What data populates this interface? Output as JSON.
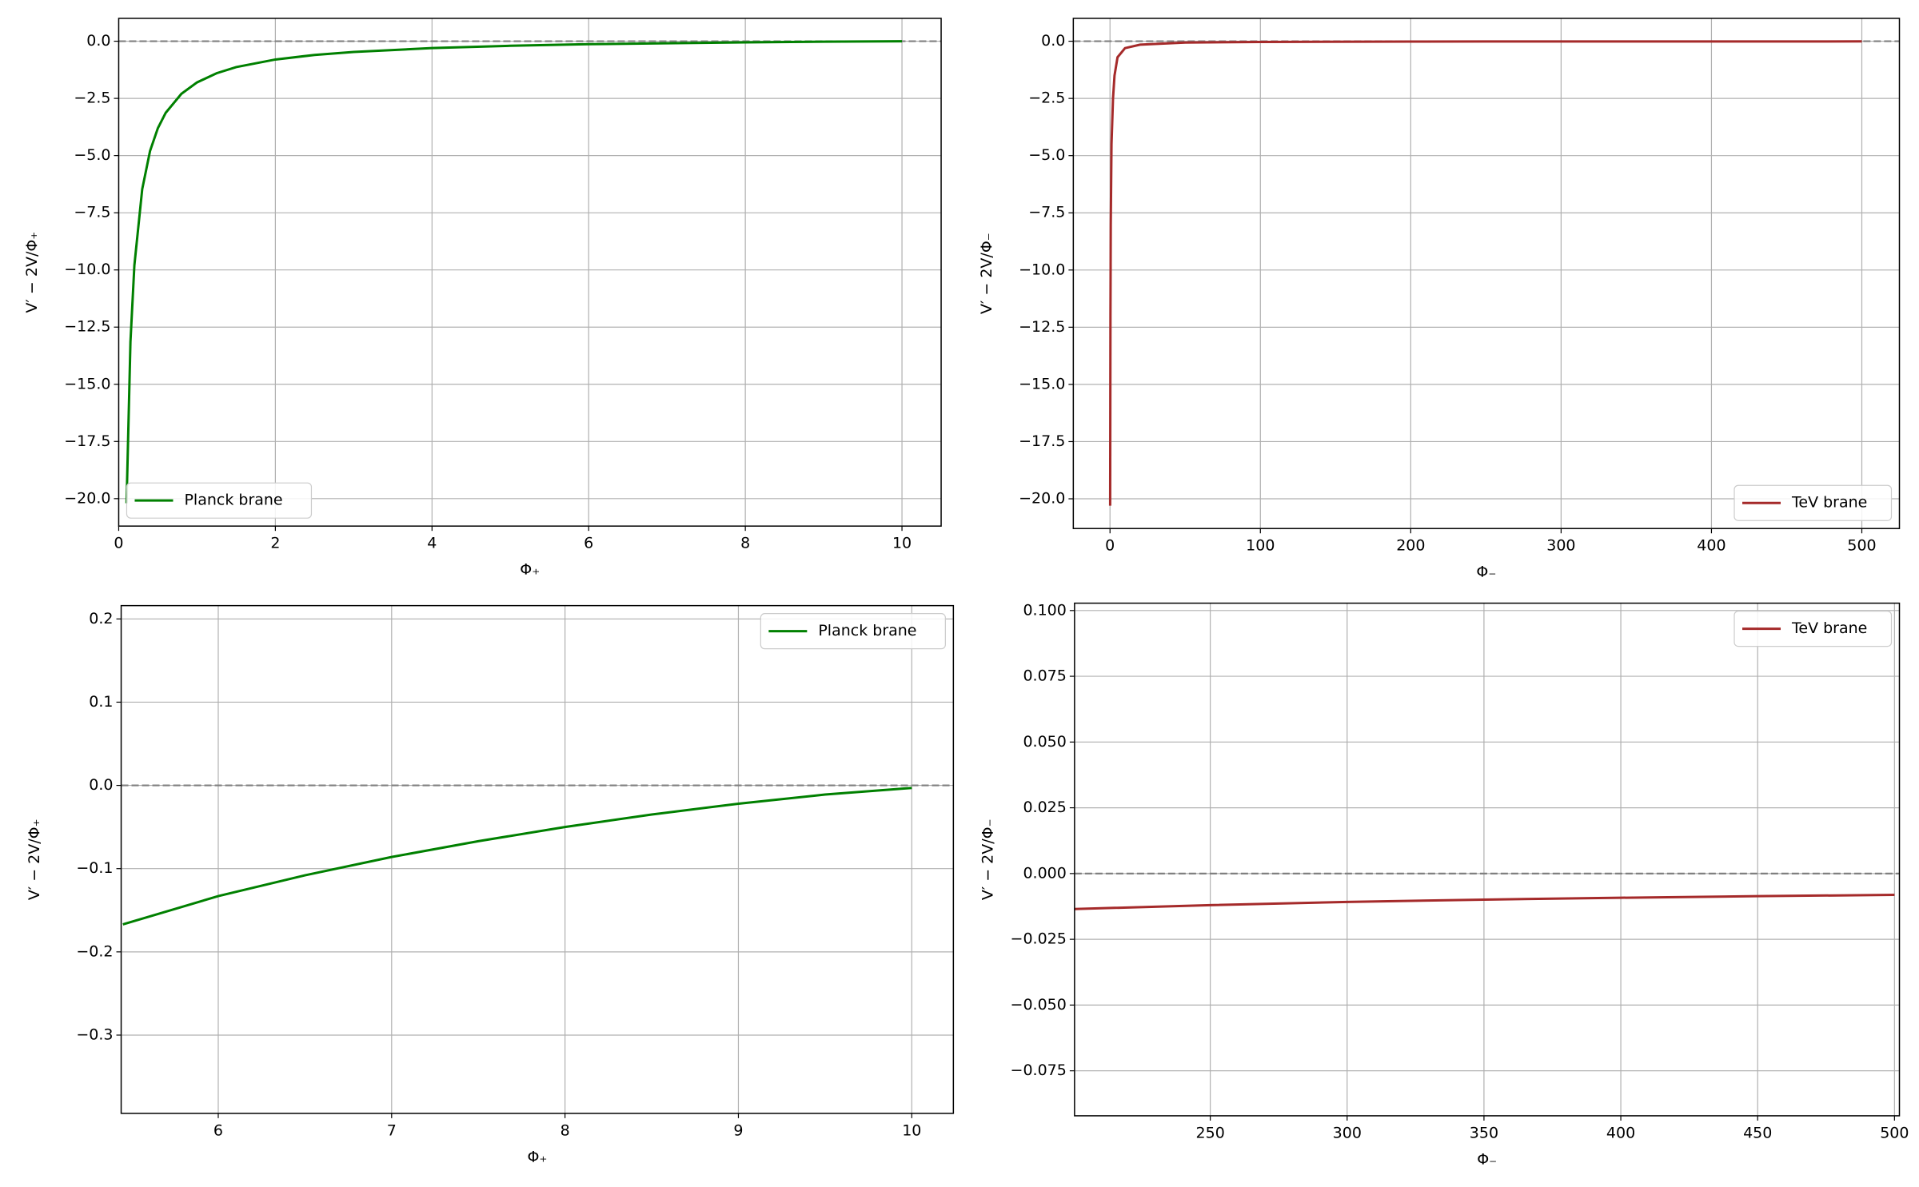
{
  "chart_data": [
    {
      "type": "line",
      "xlabel": "Φ₊",
      "ylabel": "V′ − 2V/Φ₊",
      "x": [
        0.1,
        0.15,
        0.2,
        0.3,
        0.4,
        0.5,
        0.6,
        0.8,
        1,
        1.25,
        1.5,
        2,
        2.5,
        3,
        4,
        5,
        6,
        7,
        8,
        9,
        10
      ],
      "series": [
        {
          "name": "Planck brane",
          "color": "#008000",
          "values": [
            -20.2,
            -13.13,
            -9.8,
            -6.47,
            -4.8,
            -3.8,
            -3.13,
            -2.3,
            -1.8,
            -1.4,
            -1.13,
            -0.8,
            -0.6,
            -0.47,
            -0.3,
            -0.2,
            -0.13,
            -0.09,
            -0.05,
            -0.02,
            0
          ]
        }
      ],
      "xlim": [
        0,
        10.5
      ],
      "ylim": [
        -21.2,
        1.0
      ],
      "xticks": [
        0,
        2,
        4,
        6,
        8,
        10
      ],
      "yticks": [
        {
          "value": 0,
          "label": "0.0"
        },
        {
          "value": -2.5,
          "label": "−2.5"
        },
        {
          "value": -5,
          "label": "−5.0"
        },
        {
          "value": -7.5,
          "label": "−7.5"
        },
        {
          "value": -10,
          "label": "−10.0"
        },
        {
          "value": -12.5,
          "label": "−12.5"
        },
        {
          "value": -15,
          "label": "−15.0"
        },
        {
          "value": -17.5,
          "label": "−17.5"
        },
        {
          "value": -20,
          "label": "−20.0"
        }
      ],
      "grid": true,
      "legend": "lower left",
      "hline": 0
    },
    {
      "type": "line",
      "xlabel": "Φ₋",
      "ylabel": "V′ − 2V/Φ₋",
      "x": [
        0.1,
        0.3,
        0.5,
        1,
        2,
        3,
        5,
        10,
        20,
        50,
        100,
        200,
        250,
        300,
        350,
        400,
        450,
        500
      ],
      "series": [
        {
          "name": "TeV brane",
          "color": "#a52a2a",
          "values": [
            -20.3,
            -12,
            -8,
            -4.5,
            -2.5,
            -1.5,
            -0.7,
            -0.3,
            -0.15,
            -0.06,
            -0.03,
            -0.0135,
            -0.012,
            -0.0108,
            -0.0099,
            -0.0092,
            -0.0086,
            -0.0081
          ]
        }
      ],
      "xlim": [
        -24.4,
        525
      ],
      "ylim": [
        -21.3,
        1.0
      ],
      "xticks": [
        0,
        100,
        200,
        300,
        400,
        500
      ],
      "yticks": [
        {
          "value": 0,
          "label": "0.0"
        },
        {
          "value": -2.5,
          "label": "−2.5"
        },
        {
          "value": -5,
          "label": "−5.0"
        },
        {
          "value": -7.5,
          "label": "−7.5"
        },
        {
          "value": -10,
          "label": "−10.0"
        },
        {
          "value": -12.5,
          "label": "−12.5"
        },
        {
          "value": -15,
          "label": "−15.0"
        },
        {
          "value": -17.5,
          "label": "−17.5"
        },
        {
          "value": -20,
          "label": "−20.0"
        }
      ],
      "grid": true,
      "legend": "lower right",
      "hline": 0
    },
    {
      "type": "line",
      "xlabel": "Φ₊",
      "ylabel": "V′ − 2V/Φ₊",
      "x": [
        5.45,
        6,
        6.5,
        7,
        7.5,
        8,
        8.5,
        9,
        9.5,
        10
      ],
      "series": [
        {
          "name": "Planck brane",
          "color": "#008000",
          "values": [
            -0.167,
            -0.133,
            -0.108,
            -0.086,
            -0.067,
            -0.05,
            -0.035,
            -0.022,
            -0.011,
            -0.003
          ]
        }
      ],
      "xlim": [
        5.44,
        10.24
      ],
      "ylim": [
        -0.394,
        0.216
      ],
      "xticks": [
        6,
        7,
        8,
        9,
        10
      ],
      "yticks": [
        0.2,
        0.1,
        {
          "value": 0,
          "label": "0.0"
        },
        {
          "value": -0.1,
          "label": "−0.1"
        },
        {
          "value": -0.2,
          "label": "−0.2"
        },
        {
          "value": -0.3,
          "label": "−0.3"
        }
      ],
      "grid": true,
      "legend": "upper right",
      "hline": 0
    },
    {
      "type": "line",
      "xlabel": "Φ₋",
      "ylabel": "V′ − 2V/Φ₋",
      "x": [
        200,
        250,
        300,
        350,
        400,
        450,
        500
      ],
      "series": [
        {
          "name": "TeV brane",
          "color": "#a52a2a",
          "values": [
            -0.0135,
            -0.012,
            -0.0108,
            -0.0099,
            -0.0092,
            -0.0086,
            -0.0081
          ]
        }
      ],
      "xlim": [
        200.4,
        501.8
      ],
      "ylim": [
        -0.0921,
        0.1028
      ],
      "xticks": [
        250,
        300,
        350,
        400,
        450,
        500
      ],
      "yticks": [
        {
          "value": 0.1,
          "label": "0.100"
        },
        {
          "value": 0.075,
          "label": "0.075"
        },
        {
          "value": 0.05,
          "label": "0.050"
        },
        {
          "value": 0.025,
          "label": "0.025"
        },
        {
          "value": 0,
          "label": "0.000"
        },
        {
          "value": -0.025,
          "label": "−0.025"
        },
        {
          "value": -0.05,
          "label": "−0.050"
        },
        {
          "value": -0.075,
          "label": "−0.075"
        }
      ],
      "grid": true,
      "legend": "upper right",
      "hline": 0
    }
  ]
}
